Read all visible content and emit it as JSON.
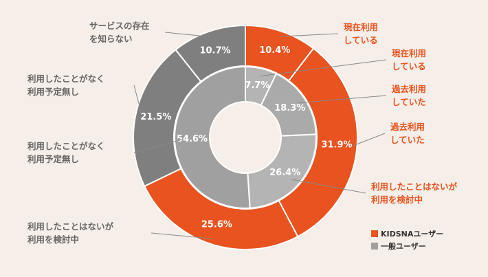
{
  "chart_data": {
    "type": "donut",
    "series": [
      {
        "name": "KIDSNAユーザー",
        "color": "#e8531f",
        "labels": [
          [
            "現在利用",
            "している"
          ],
          [
            "過去利用",
            "していた"
          ],
          [
            "利用したことはないが",
            "利用を検討中"
          ],
          [
            "利用したことがなく",
            "利用予定無し"
          ],
          [
            "サービスの存在",
            "を知らない"
          ]
        ],
        "values": [
          10.4,
          31.9,
          25.6,
          21.5,
          10.7
        ],
        "value_labels": [
          "10.4%",
          "31.9%",
          "25.6%",
          "21.5%",
          "10.7%"
        ],
        "colors": [
          "#e8531f",
          "#e8531f",
          "#e8531f",
          "#7f7f7f",
          "#7f7f7f"
        ]
      },
      {
        "name": "一般ユーザー",
        "color": "#a0a0a0",
        "labels": [
          [
            "現在利用",
            "している"
          ],
          [
            "過去利用",
            "していた"
          ],
          [
            "利用したことはないが",
            "利用を検討中"
          ],
          [
            "利用したことがなく",
            "利用予定無し"
          ]
        ],
        "values": [
          7.7,
          18.3,
          26.4,
          54.6
        ],
        "value_labels": [
          "7.7%",
          "18.3%",
          "26.4%",
          "54.6%"
        ],
        "colors": [
          "#b4b4b4",
          "#aaaaaa",
          "#b4b4b4",
          "#a0a0a0"
        ]
      }
    ]
  }
}
